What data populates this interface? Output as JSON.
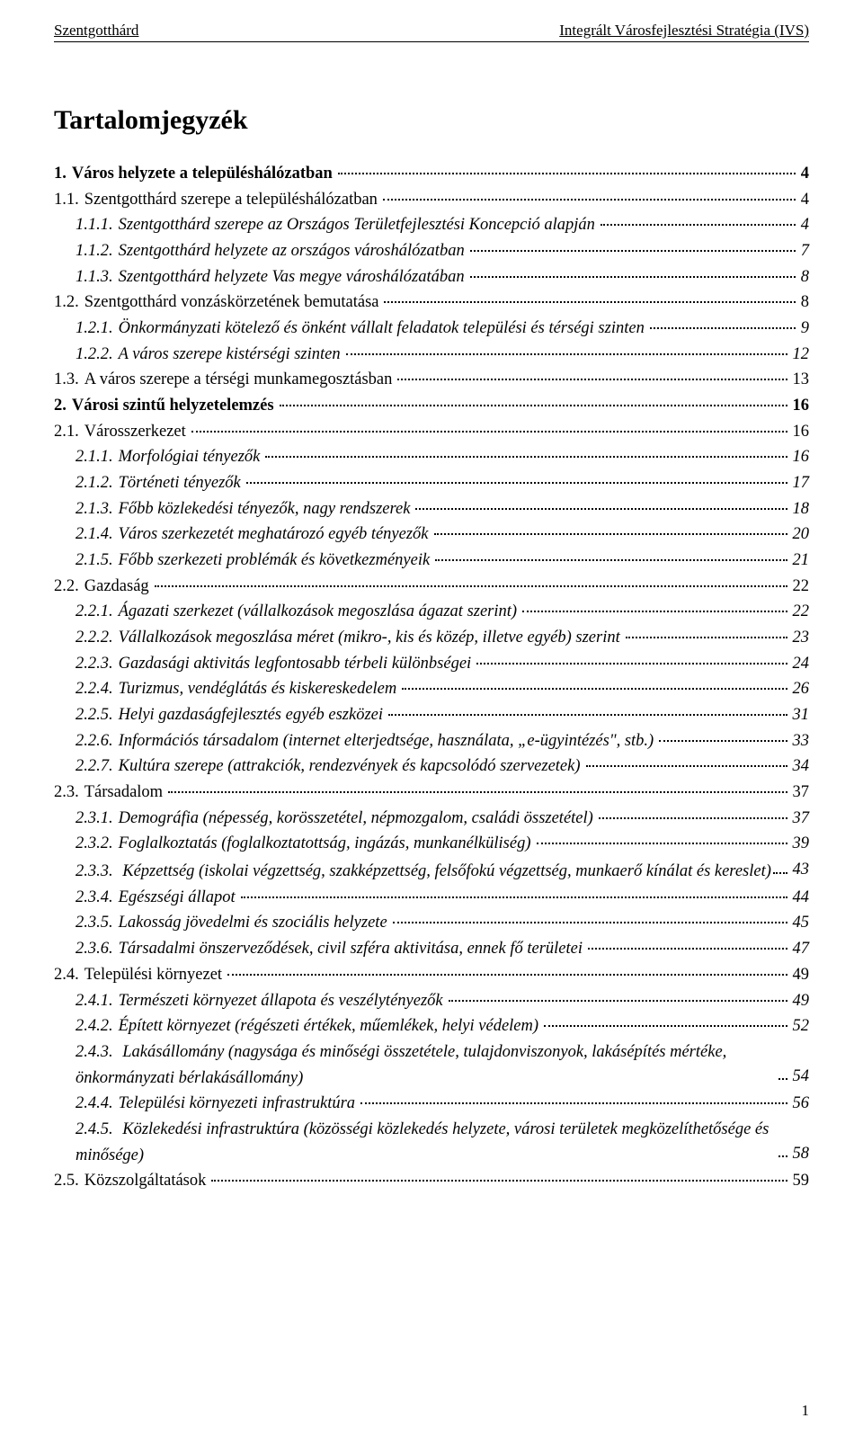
{
  "header": {
    "left": "Szentgotthárd",
    "right": "Integrált Városfejlesztési Stratégia (IVS)"
  },
  "title": "Tartalomjegyzék",
  "footer_page": "1",
  "toc": [
    {
      "level": 1,
      "num": "1.",
      "text": "Város helyzete a településhálózatban",
      "page": "4",
      "bold": true,
      "italic": false
    },
    {
      "level": 2,
      "num": "1.1.",
      "text": "Szentgotthárd szerepe a településhálózatban",
      "page": "4",
      "bold": false,
      "italic": false
    },
    {
      "level": 3,
      "num": "1.1.1.",
      "text": "Szentgotthárd szerepe az Országos Területfejlesztési Koncepció alapján",
      "page": "4",
      "bold": false,
      "italic": true
    },
    {
      "level": 3,
      "num": "1.1.2.",
      "text": "Szentgotthárd helyzete az országos városhálózatban",
      "page": "7",
      "bold": false,
      "italic": true
    },
    {
      "level": 3,
      "num": "1.1.3.",
      "text": "Szentgotthárd helyzete Vas megye városhálózatában",
      "page": "8",
      "bold": false,
      "italic": true
    },
    {
      "level": 2,
      "num": "1.2.",
      "text": "Szentgotthárd vonzáskörzetének bemutatása",
      "page": "8",
      "bold": false,
      "italic": false
    },
    {
      "level": 3,
      "num": "1.2.1.",
      "text": "Önkormányzati kötelező és önként vállalt feladatok települési és térségi szinten",
      "page": "9",
      "bold": false,
      "italic": true
    },
    {
      "level": 3,
      "num": "1.2.2.",
      "text": "A város szerepe kistérségi szinten",
      "page": "12",
      "bold": false,
      "italic": true
    },
    {
      "level": 2,
      "num": "1.3.",
      "text": "A város szerepe a térségi munkamegosztásban",
      "page": "13",
      "bold": false,
      "italic": false
    },
    {
      "level": 1,
      "num": "2.",
      "text": "Városi szintű helyzetelemzés",
      "page": "16",
      "bold": true,
      "italic": false
    },
    {
      "level": 2,
      "num": "2.1.",
      "text": "Városszerkezet",
      "page": "16",
      "bold": false,
      "italic": false
    },
    {
      "level": 3,
      "num": "2.1.1.",
      "text": "Morfológiai tényezők",
      "page": "16",
      "bold": false,
      "italic": true
    },
    {
      "level": 3,
      "num": "2.1.2.",
      "text": "Történeti tényezők",
      "page": "17",
      "bold": false,
      "italic": true
    },
    {
      "level": 3,
      "num": "2.1.3.",
      "text": "Főbb közlekedési tényezők, nagy rendszerek",
      "page": "18",
      "bold": false,
      "italic": true
    },
    {
      "level": 3,
      "num": "2.1.4.",
      "text": "Város szerkezetét meghatározó egyéb tényezők",
      "page": "20",
      "bold": false,
      "italic": true
    },
    {
      "level": 3,
      "num": "2.1.5.",
      "text": "Főbb szerkezeti problémák és következményeik",
      "page": "21",
      "bold": false,
      "italic": true
    },
    {
      "level": 2,
      "num": "2.2.",
      "text": "Gazdaság",
      "page": "22",
      "bold": false,
      "italic": false
    },
    {
      "level": 3,
      "num": "2.2.1.",
      "text": "Ágazati szerkezet (vállalkozások megoszlása ágazat szerint)",
      "page": "22",
      "bold": false,
      "italic": true
    },
    {
      "level": 3,
      "num": "2.2.2.",
      "text": "Vállalkozások megoszlása méret (mikro-, kis és közép, illetve egyéb) szerint",
      "page": "23",
      "bold": false,
      "italic": true
    },
    {
      "level": 3,
      "num": "2.2.3.",
      "text": "Gazdasági aktivitás legfontosabb térbeli különbségei",
      "page": "24",
      "bold": false,
      "italic": true
    },
    {
      "level": 3,
      "num": "2.2.4.",
      "text": "Turizmus, vendéglátás és kiskereskedelem",
      "page": "26",
      "bold": false,
      "italic": true
    },
    {
      "level": 3,
      "num": "2.2.5.",
      "text": "Helyi gazdaságfejlesztés egyéb eszközei",
      "page": "31",
      "bold": false,
      "italic": true
    },
    {
      "level": 3,
      "num": "2.2.6.",
      "text": "Információs társadalom (internet elterjedtsége, használata, „e-ügyintézés\", stb.)",
      "page": "33",
      "bold": false,
      "italic": true
    },
    {
      "level": 3,
      "num": "2.2.7.",
      "text": "Kultúra szerepe (attrakciók, rendezvények és kapcsolódó szervezetek)",
      "page": "34",
      "bold": false,
      "italic": true
    },
    {
      "level": 2,
      "num": "2.3.",
      "text": "Társadalom",
      "page": "37",
      "bold": false,
      "italic": false
    },
    {
      "level": 3,
      "num": "2.3.1.",
      "text": "Demográfia (népesség, korösszetétel, népmozgalom, családi összetétel)",
      "page": "37",
      "bold": false,
      "italic": true
    },
    {
      "level": 3,
      "num": "2.3.2.",
      "text": "Foglalkoztatás (foglalkoztatottság, ingázás, munkanélküliség)",
      "page": "39",
      "bold": false,
      "italic": true
    },
    {
      "level": 3,
      "num": "2.3.3.",
      "text": "Képzettség (iskolai végzettség, szakképzettség, felsőfokú végzettség, munkaerő kínálat és kereslet)",
      "page": "43",
      "bold": false,
      "italic": true,
      "wrap": true
    },
    {
      "level": 3,
      "num": "2.3.4.",
      "text": "Egészségi állapot",
      "page": "44",
      "bold": false,
      "italic": true
    },
    {
      "level": 3,
      "num": "2.3.5.",
      "text": "Lakosság jövedelmi és szociális helyzete",
      "page": "45",
      "bold": false,
      "italic": true
    },
    {
      "level": 3,
      "num": "2.3.6.",
      "text": "Társadalmi önszerveződések, civil szféra aktivitása, ennek fő területei",
      "page": "47",
      "bold": false,
      "italic": true
    },
    {
      "level": 2,
      "num": "2.4.",
      "text": "Települési környezet",
      "page": "49",
      "bold": false,
      "italic": false
    },
    {
      "level": 3,
      "num": "2.4.1.",
      "text": "Természeti környezet állapota és veszélytényezők",
      "page": "49",
      "bold": false,
      "italic": true
    },
    {
      "level": 3,
      "num": "2.4.2.",
      "text": "Épített környezet (régészeti értékek, műemlékek, helyi védelem)",
      "page": "52",
      "bold": false,
      "italic": true
    },
    {
      "level": 3,
      "num": "2.4.3.",
      "text": "Lakásállomány (nagysága és minőségi összetétele, tulajdonviszonyok, lakásépítés mértéke, önkormányzati bérlakásállomány)",
      "page": "54",
      "bold": false,
      "italic": true,
      "wrap": true
    },
    {
      "level": 3,
      "num": "2.4.4.",
      "text": "Települési környezeti infrastruktúra",
      "page": "56",
      "bold": false,
      "italic": true
    },
    {
      "level": 3,
      "num": "2.4.5.",
      "text": "Közlekedési infrastruktúra (közösségi közlekedés helyzete, városi területek megközelíthetősége és minősége)",
      "page": "58",
      "bold": false,
      "italic": true,
      "wrap": true
    },
    {
      "level": 2,
      "num": "2.5.",
      "text": "Közszolgáltatások",
      "page": "59",
      "bold": false,
      "italic": false
    }
  ]
}
